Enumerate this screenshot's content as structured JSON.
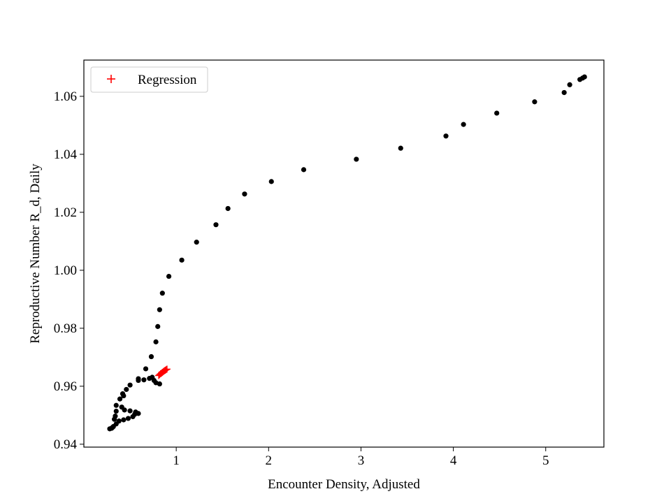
{
  "chart_data": {
    "type": "scatter",
    "title": "",
    "xlabel": "Encounter Density, Adjusted",
    "ylabel": "Reproductive Number R_d, Daily",
    "xlim": [
      0.0,
      5.63
    ],
    "ylim": [
      0.939,
      1.0725
    ],
    "x_ticks": [
      1,
      2,
      3,
      4,
      5
    ],
    "x_tick_labels": [
      "1",
      "2",
      "3",
      "4",
      "5"
    ],
    "y_ticks": [
      0.94,
      0.96,
      0.98,
      1.0,
      1.02,
      1.04,
      1.06
    ],
    "y_tick_labels": [
      "0.94",
      "0.96",
      "0.98",
      "1.00",
      "1.02",
      "1.04",
      "1.06"
    ],
    "grid": false,
    "legend": {
      "position": "upper-left",
      "entries": [
        "Regression"
      ]
    },
    "colors": {
      "data": "#000000",
      "regression": "#ff0000"
    },
    "series": [
      {
        "marker": "dot",
        "color": "#000000",
        "points": [
          [
            5.42,
            1.0667
          ],
          [
            5.4,
            1.0663
          ],
          [
            5.37,
            1.0658
          ],
          [
            5.26,
            1.064
          ],
          [
            5.2,
            1.0613
          ],
          [
            4.88,
            1.0581
          ],
          [
            4.47,
            1.0542
          ],
          [
            4.11,
            1.0503
          ],
          [
            3.92,
            1.0463
          ],
          [
            3.43,
            1.0421
          ],
          [
            2.95,
            1.0383
          ],
          [
            2.38,
            1.0347
          ],
          [
            2.03,
            1.0306
          ],
          [
            1.74,
            1.0263
          ],
          [
            1.56,
            1.0213
          ],
          [
            1.43,
            1.0157
          ],
          [
            1.22,
            1.0097
          ],
          [
            1.06,
            1.0035
          ],
          [
            0.92,
            0.9979
          ],
          [
            0.85,
            0.9921
          ],
          [
            0.82,
            0.9864
          ],
          [
            0.8,
            0.9806
          ],
          [
            0.78,
            0.9753
          ],
          [
            0.73,
            0.9702
          ],
          [
            0.67,
            0.966
          ],
          [
            0.74,
            0.9631
          ],
          [
            0.76,
            0.962
          ],
          [
            0.78,
            0.9612
          ],
          [
            0.82,
            0.9608
          ],
          [
            0.71,
            0.9627
          ],
          [
            0.65,
            0.9622
          ],
          [
            0.59,
            0.962
          ],
          [
            0.59,
            0.9626
          ],
          [
            0.5,
            0.9604
          ],
          [
            0.46,
            0.9589
          ],
          [
            0.42,
            0.9574
          ],
          [
            0.43,
            0.9567
          ],
          [
            0.39,
            0.9556
          ],
          [
            0.41,
            0.9528
          ],
          [
            0.44,
            0.9518
          ],
          [
            0.35,
            0.9534
          ],
          [
            0.35,
            0.9514
          ],
          [
            0.34,
            0.9497
          ],
          [
            0.33,
            0.9486
          ],
          [
            0.35,
            0.947
          ],
          [
            0.38,
            0.948
          ],
          [
            0.43,
            0.9484
          ],
          [
            0.48,
            0.9489
          ],
          [
            0.53,
            0.9495
          ],
          [
            0.55,
            0.9503
          ],
          [
            0.59,
            0.9506
          ],
          [
            0.56,
            0.9511
          ],
          [
            0.5,
            0.9515
          ],
          [
            0.32,
            0.9461
          ],
          [
            0.3,
            0.9455
          ],
          [
            0.28,
            0.9453
          ],
          [
            0.31,
            0.9458
          ]
        ]
      },
      {
        "name": "Regression",
        "marker": "plus",
        "color": "#ff0000",
        "points": [
          [
            0.81,
            0.9637
          ],
          [
            0.82,
            0.964
          ],
          [
            0.83,
            0.9643
          ],
          [
            0.84,
            0.9645
          ],
          [
            0.85,
            0.9648
          ],
          [
            0.86,
            0.965
          ],
          [
            0.87,
            0.9653
          ],
          [
            0.88,
            0.9655
          ],
          [
            0.89,
            0.9657
          ],
          [
            0.9,
            0.9659
          ]
        ]
      }
    ]
  }
}
